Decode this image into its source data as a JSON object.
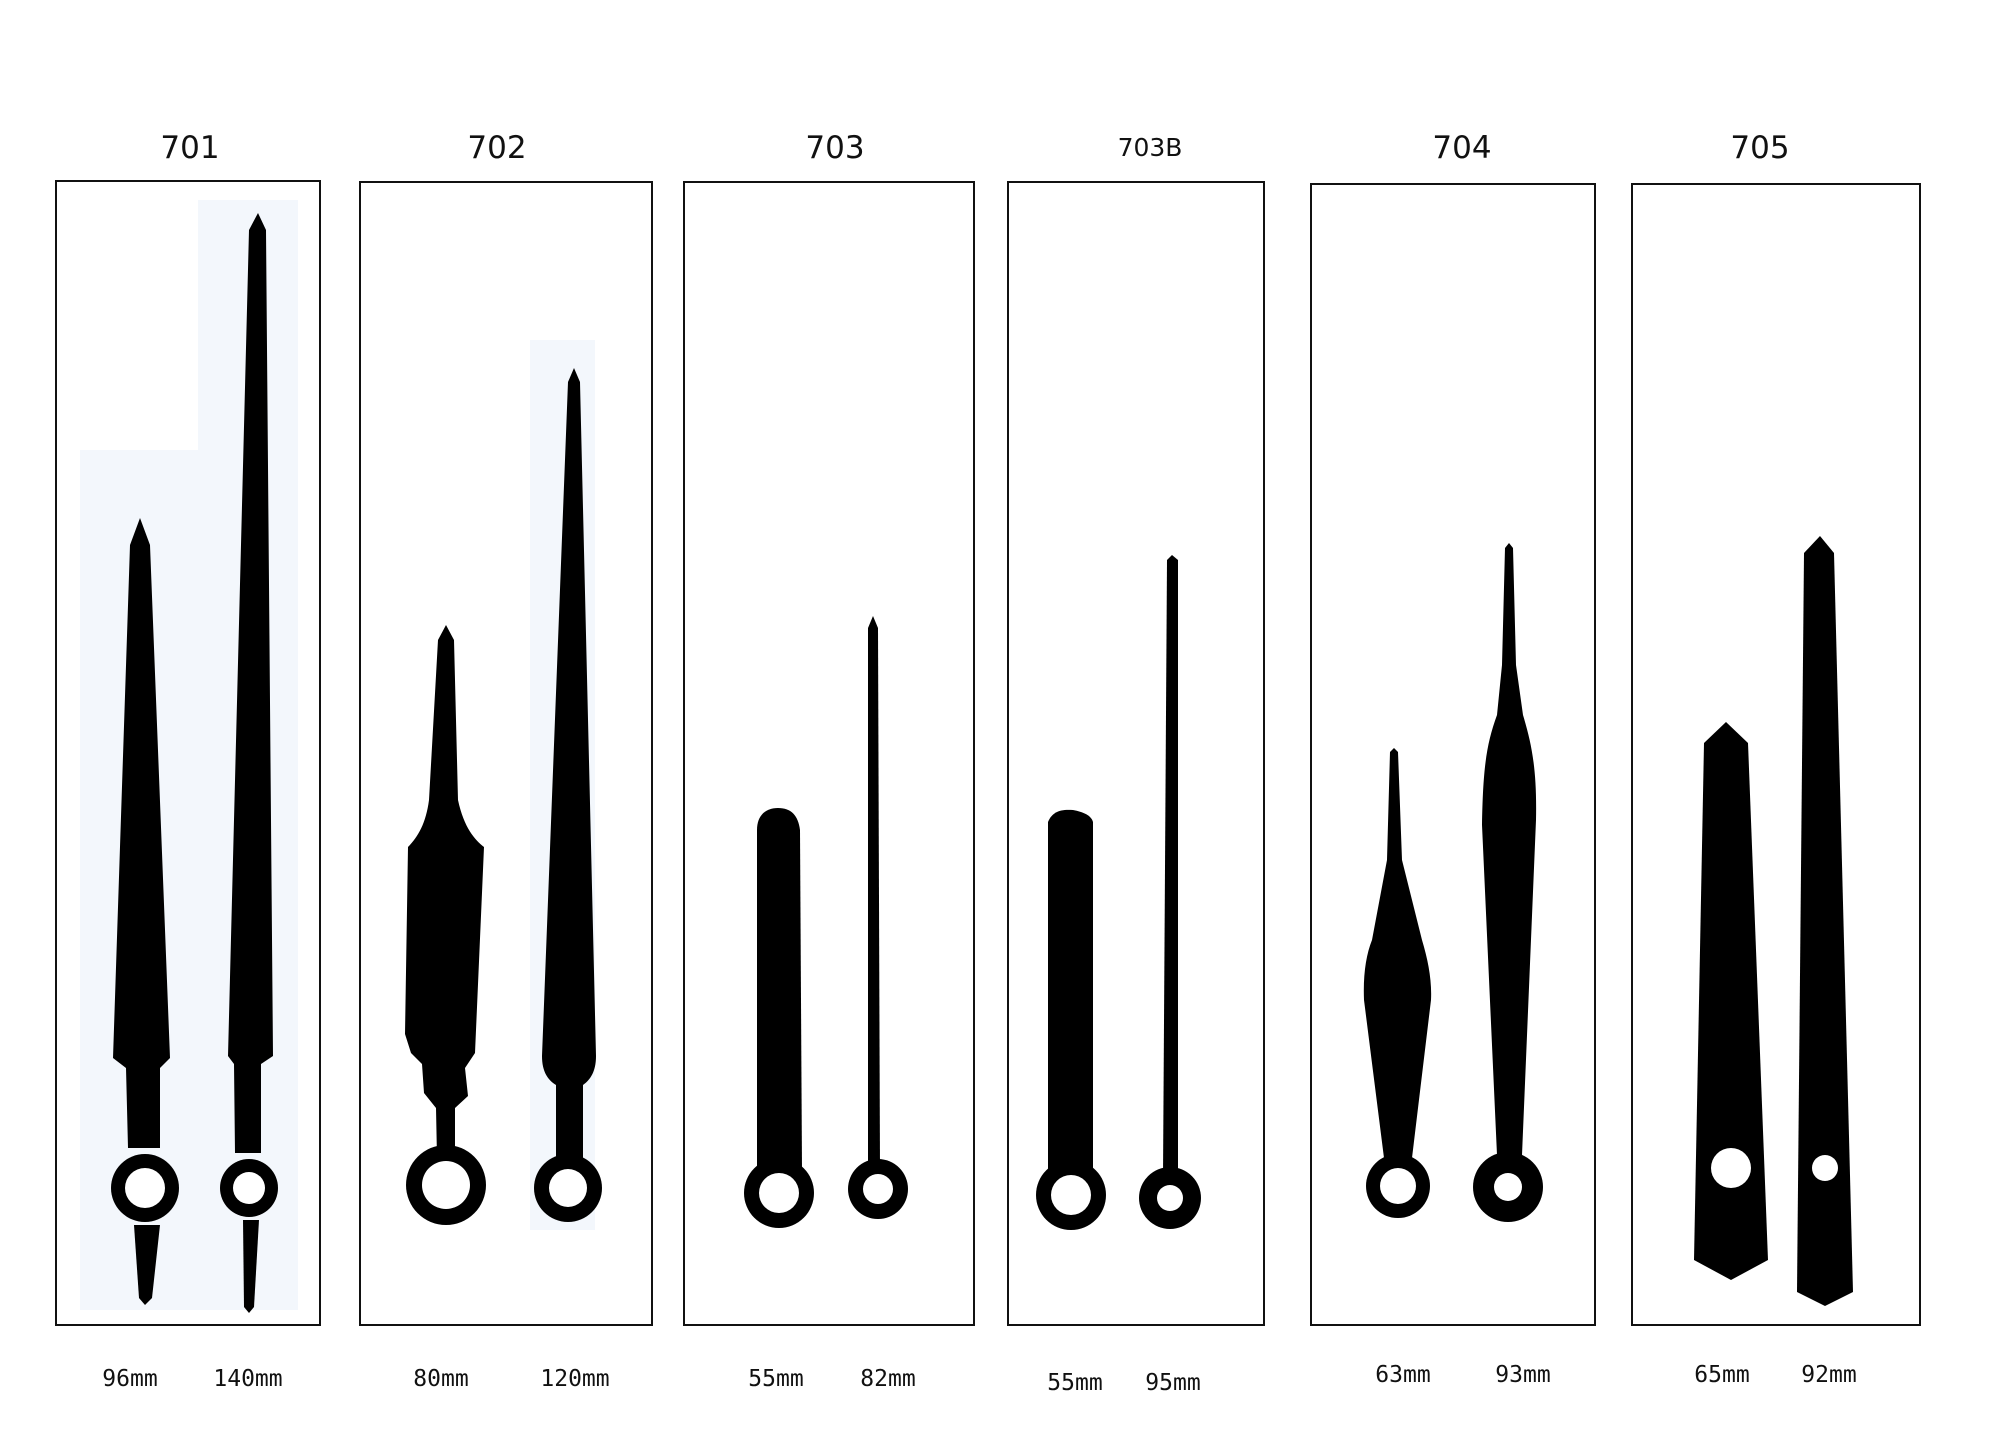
{
  "colors": {
    "ink": "#000000",
    "hole": "#ffffff",
    "frame": "#111111",
    "tint": "#f3f7fc"
  },
  "panels": [
    {
      "code": "701",
      "sizes": [
        "96mm",
        "140mm"
      ]
    },
    {
      "code": "702",
      "sizes": [
        "80mm",
        "120mm"
      ]
    },
    {
      "code": "703",
      "sizes": [
        "55mm",
        "82mm"
      ]
    },
    {
      "code": "703B",
      "sizes": [
        "55mm",
        "95mm"
      ]
    },
    {
      "code": "704",
      "sizes": [
        "63mm",
        "93mm"
      ]
    },
    {
      "code": "705",
      "sizes": [
        "65mm",
        "92mm"
      ]
    }
  ]
}
